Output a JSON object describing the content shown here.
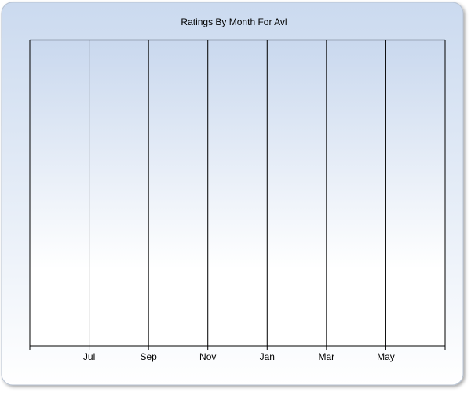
{
  "chart_data": {
    "type": "line",
    "title": "Ratings By Month For Avl",
    "categories": [
      null,
      "Jul",
      "Sep",
      "Nov",
      "Jan",
      "Mar",
      "May",
      null
    ],
    "series": [],
    "grid": true
  }
}
